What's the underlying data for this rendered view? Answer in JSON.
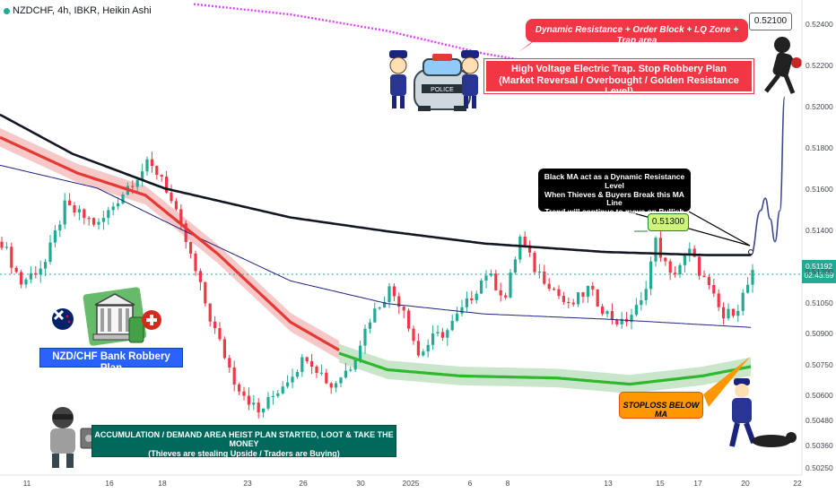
{
  "header": {
    "ticker": "NZDCHF, 4h, IBKR, Heikin Ashi"
  },
  "colors": {
    "up": "#22ab94",
    "down": "#f23645",
    "ma_black": "#131722",
    "ma_red": "#e53935",
    "ma_green": "#2eb82e",
    "trap_line": "#e040fb",
    "forecast": "#3d4a8f"
  },
  "annotations": {
    "dynamic_resistance": "Dynamic Resistance + Order Block + LQ Zone + Trap area",
    "trap_line1": "High Voltage Electric Trap. Stop Robbery Plan",
    "trap_line2": "(Market Reversal / Overbought / Golden Resistance Level)",
    "black_ma_line1": "Black MA act as a Dynamic Resistance Level",
    "black_ma_line2": "When Thieves & Buyers Break this MA Line",
    "black_ma_line3": "Trend will continue to move on Bullish",
    "stoploss": "STOPLOSS BELOW MA",
    "accumulation_line1": "ACCUMULATION / DEMAND AREA HEIST PLAN STARTED, LOOT & TAKE THE MONEY",
    "accumulation_line2": "(Thieves are stealing Upside / Traders are Buying)",
    "plan_title": "NZD/CHF Bank Robbery Plan",
    "target_label": "0.52100",
    "breakout_label": "0.51300"
  },
  "price_box": {
    "price": "0.51192",
    "countdown": "02:43:59"
  },
  "chart_data": {
    "type": "candlestick",
    "title": "NZDCHF, 4h, IBKR, Heikin Ashi",
    "ylim": [
      0.5022,
      0.5252
    ],
    "yticks": [
      "0.52400",
      "0.52200",
      "0.52000",
      "0.51800",
      "0.51600",
      "0.51400",
      "0.51200",
      "0.51050",
      "0.50900",
      "0.50750",
      "0.50600",
      "0.50480",
      "0.50360",
      "0.50250"
    ],
    "xticks": [
      "11",
      "16",
      "18",
      "23",
      "26",
      "30",
      "2025",
      "6",
      "8",
      "13",
      "15",
      "17",
      "20",
      "22"
    ],
    "anchors": [
      [
        0,
        0.5135
      ],
      [
        4,
        0.5115
      ],
      [
        9,
        0.5125
      ],
      [
        13,
        0.5152
      ],
      [
        20,
        0.5143
      ],
      [
        26,
        0.5162
      ],
      [
        30,
        0.5172
      ],
      [
        33,
        0.5167
      ],
      [
        38,
        0.5135
      ],
      [
        43,
        0.5098
      ],
      [
        48,
        0.5068
      ],
      [
        53,
        0.5052
      ],
      [
        58,
        0.5066
      ],
      [
        63,
        0.508
      ],
      [
        68,
        0.5065
      ],
      [
        72,
        0.5075
      ],
      [
        76,
        0.5098
      ],
      [
        80,
        0.5112
      ],
      [
        83,
        0.5103
      ],
      [
        86,
        0.508
      ],
      [
        89,
        0.5088
      ],
      [
        92,
        0.5092
      ],
      [
        96,
        0.5105
      ],
      [
        100,
        0.512
      ],
      [
        104,
        0.5108
      ],
      [
        107,
        0.5137
      ],
      [
        110,
        0.5122
      ],
      [
        113,
        0.5115
      ],
      [
        117,
        0.5103
      ],
      [
        121,
        0.5112
      ],
      [
        125,
        0.51
      ],
      [
        128,
        0.5095
      ],
      [
        132,
        0.5105
      ],
      [
        135,
        0.5135
      ],
      [
        138,
        0.5118
      ],
      [
        142,
        0.513
      ],
      [
        146,
        0.5112
      ],
      [
        149,
        0.5098
      ],
      [
        152,
        0.5104
      ],
      [
        155,
        0.5119
      ]
    ],
    "series": [
      {
        "name": "Black MA",
        "points": [
          [
            0,
            0.51965
          ],
          [
            15,
            0.51775
          ],
          [
            34,
            0.51608
          ],
          [
            60,
            0.51467
          ],
          [
            80,
            0.514
          ],
          [
            100,
            0.51341
          ],
          [
            125,
            0.513
          ],
          [
            146,
            0.51285
          ],
          [
            155,
            0.51285
          ]
        ]
      },
      {
        "name": "Red MA",
        "points": [
          [
            0,
            0.51855
          ],
          [
            16,
            0.51682
          ],
          [
            30,
            0.51575
          ],
          [
            45,
            0.5129
          ],
          [
            60,
            0.5096
          ],
          [
            70,
            0.50825
          ]
        ]
      },
      {
        "name": "Green MA",
        "points": [
          [
            70,
            0.5081
          ],
          [
            80,
            0.5073
          ],
          [
            95,
            0.507
          ],
          [
            115,
            0.5069
          ],
          [
            130,
            0.5066
          ],
          [
            145,
            0.507
          ],
          [
            155,
            0.50745
          ]
        ]
      },
      {
        "name": "Thin MA",
        "points": [
          [
            0,
            0.5172
          ],
          [
            20,
            0.5161
          ],
          [
            40,
            0.5138
          ],
          [
            60,
            0.5116
          ],
          [
            80,
            0.5105
          ],
          [
            100,
            0.51
          ],
          [
            125,
            0.50975
          ],
          [
            140,
            0.50955
          ],
          [
            155,
            0.50935
          ]
        ]
      },
      {
        "name": "Trap line",
        "points": [
          [
            40,
            0.525
          ],
          [
            60,
            0.5245
          ],
          [
            80,
            0.5237
          ],
          [
            100,
            0.5226
          ],
          [
            120,
            0.5218
          ],
          [
            140,
            0.5214
          ],
          [
            155,
            0.5212
          ]
        ]
      }
    ],
    "forecast": [
      [
        155,
        0.51285
      ],
      [
        157,
        0.515
      ],
      [
        158,
        0.5156
      ],
      [
        159,
        0.5146
      ],
      [
        160,
        0.5135
      ],
      [
        161,
        0.515
      ],
      [
        162,
        0.5205
      ]
    ],
    "levels": {
      "target": 0.521,
      "breakout": 0.513,
      "last": 0.51192
    }
  }
}
